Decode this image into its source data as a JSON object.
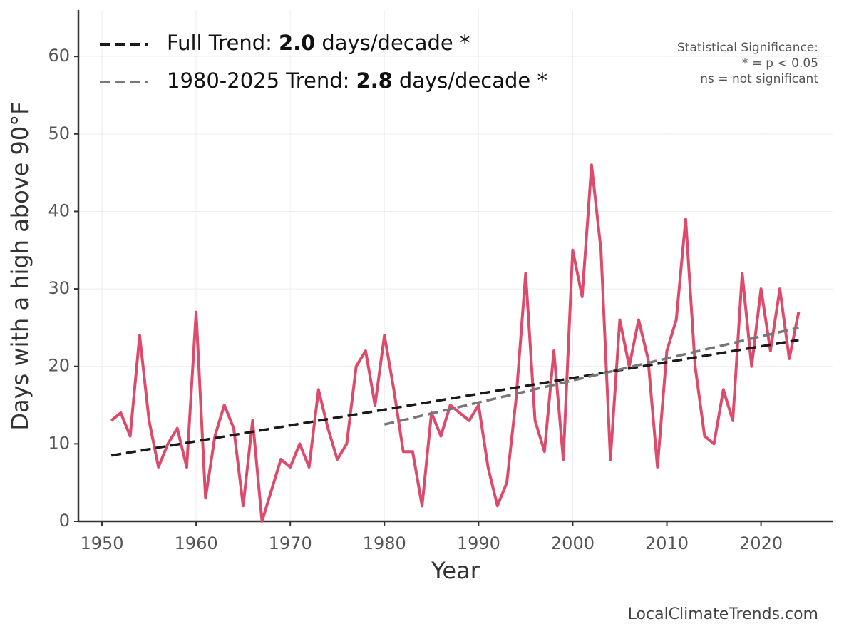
{
  "chart_data": {
    "type": "line",
    "xlabel": "Year",
    "ylabel": "Days with a high above 90°F",
    "xlim": [
      1947.5,
      2027.6
    ],
    "ylim": [
      0,
      66
    ],
    "xticks": [
      1950,
      1960,
      1970,
      1980,
      1990,
      2000,
      2010,
      2020
    ],
    "yticks": [
      0,
      10,
      20,
      30,
      40,
      50,
      60
    ],
    "grid": true,
    "legend": "upper left",
    "series": [
      {
        "color": "#dc4b6c",
        "style": "solid",
        "x": [
          1951,
          1952,
          1953,
          1954,
          1955,
          1956,
          1957,
          1958,
          1959,
          1960,
          1961,
          1962,
          1963,
          1964,
          1965,
          1966,
          1967,
          1968,
          1969,
          1970,
          1971,
          1972,
          1973,
          1974,
          1975,
          1976,
          1977,
          1978,
          1979,
          1980,
          1981,
          1982,
          1983,
          1984,
          1985,
          1986,
          1987,
          1988,
          1989,
          1990,
          1991,
          1992,
          1993,
          1994,
          1995,
          1996,
          1997,
          1998,
          1999,
          2000,
          2001,
          2002,
          2003,
          2004,
          2005,
          2006,
          2007,
          2008,
          2009,
          2010,
          2011,
          2012,
          2013,
          2014,
          2015,
          2016,
          2017,
          2018,
          2019,
          2020,
          2021,
          2022,
          2023,
          2024
        ],
        "values": [
          13,
          14,
          11,
          24,
          13,
          7,
          10,
          12,
          7,
          27,
          3,
          11,
          15,
          12,
          2,
          13,
          0,
          4,
          8,
          7,
          10,
          7,
          17,
          12,
          8,
          10,
          20,
          22,
          15,
          24,
          17,
          9,
          9,
          2,
          14,
          11,
          15,
          14,
          13,
          15,
          7,
          2,
          5,
          16,
          32,
          13,
          9,
          22,
          8,
          35,
          29,
          46,
          35,
          8,
          26,
          20,
          26,
          21,
          7,
          22,
          26,
          39,
          20,
          11,
          10,
          17,
          13,
          32,
          20,
          30,
          22,
          30,
          21,
          27
        ]
      },
      {
        "color": "#1a1a1a",
        "style": "dashed",
        "name_parts": [
          "Full Trend:",
          "2.0",
          "days/decade *"
        ],
        "x": [
          1951,
          2024
        ],
        "values": [
          8.5,
          23.4
        ]
      },
      {
        "color": "#777777",
        "style": "dashed",
        "name_parts": [
          "1980-2025 Trend:",
          "2.8",
          "days/decade *"
        ],
        "x": [
          1980,
          2024
        ],
        "values": [
          12.5,
          25.0
        ]
      }
    ],
    "annotation": [
      "Statistical Significance:",
      "* = p < 0.05",
      "ns = not significant"
    ],
    "source": "LocalClimateTrends.com"
  }
}
